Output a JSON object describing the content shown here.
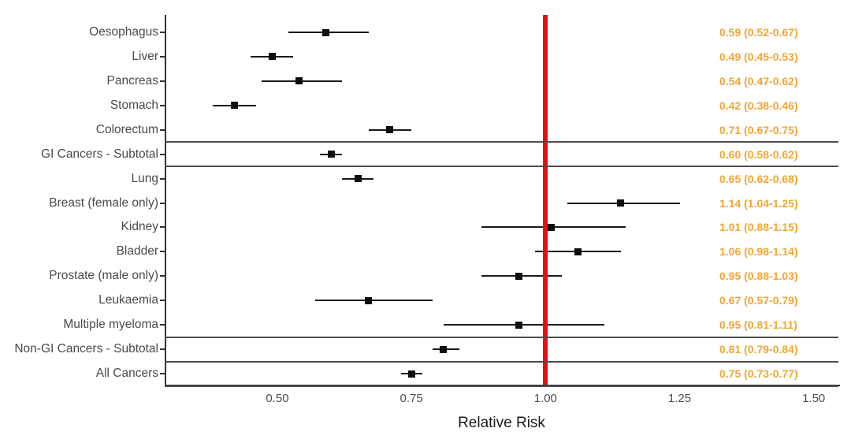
{
  "chart_data": {
    "type": "scatter",
    "variant": "forest-plot",
    "title": "",
    "xlabel": "Relative Risk",
    "ylabel": "",
    "xlim": [
      0.29,
      1.546
    ],
    "x_ticks": [
      0.5,
      0.75,
      1.0,
      1.25,
      1.5
    ],
    "x_tick_labels": [
      "0.50",
      "0.75",
      "1.00",
      "1.25",
      "1.50"
    ],
    "reference_line_x": 1.0,
    "grid": false,
    "legend": "none",
    "rows": [
      {
        "label": "Oesophagus",
        "rr": 0.59,
        "ci_low": 0.52,
        "ci_high": 0.67,
        "value_text": "0.59 (0.52-0.67)",
        "boxed": false
      },
      {
        "label": "Liver",
        "rr": 0.49,
        "ci_low": 0.45,
        "ci_high": 0.53,
        "value_text": "0.49 (0.45-0.53)",
        "boxed": false
      },
      {
        "label": "Pancreas",
        "rr": 0.54,
        "ci_low": 0.47,
        "ci_high": 0.62,
        "value_text": "0.54 (0.47-0.62)",
        "boxed": false
      },
      {
        "label": "Stomach",
        "rr": 0.42,
        "ci_low": 0.38,
        "ci_high": 0.46,
        "value_text": "0.42 (0.38-0.46)",
        "boxed": false
      },
      {
        "label": "Colorectum",
        "rr": 0.71,
        "ci_low": 0.67,
        "ci_high": 0.75,
        "value_text": "0.71 (0.67-0.75)",
        "boxed": false
      },
      {
        "label": "GI Cancers - Subtotal",
        "rr": 0.6,
        "ci_low": 0.58,
        "ci_high": 0.62,
        "value_text": "0.60 (0.58-0.62)",
        "boxed": true
      },
      {
        "label": "Lung",
        "rr": 0.65,
        "ci_low": 0.62,
        "ci_high": 0.68,
        "value_text": "0.65 (0.62-0.68)",
        "boxed": false
      },
      {
        "label": "Breast (female only)",
        "rr": 1.14,
        "ci_low": 1.04,
        "ci_high": 1.25,
        "value_text": "1.14 (1.04-1.25)",
        "boxed": false
      },
      {
        "label": "Kidney",
        "rr": 1.01,
        "ci_low": 0.88,
        "ci_high": 1.15,
        "value_text": "1.01 (0.88-1.15)",
        "boxed": false
      },
      {
        "label": "Bladder",
        "rr": 1.06,
        "ci_low": 0.98,
        "ci_high": 1.14,
        "value_text": "1.06 (0.98-1.14)",
        "boxed": false
      },
      {
        "label": "Prostate (male only)",
        "rr": 0.95,
        "ci_low": 0.88,
        "ci_high": 1.03,
        "value_text": "0.95 (0.88-1.03)",
        "boxed": false
      },
      {
        "label": "Leukaemia",
        "rr": 0.67,
        "ci_low": 0.57,
        "ci_high": 0.79,
        "value_text": "0.67 (0.57-0.79)",
        "boxed": false
      },
      {
        "label": "Multiple myeloma",
        "rr": 0.95,
        "ci_low": 0.81,
        "ci_high": 1.11,
        "value_text": "0.95 (0.81-1.11)",
        "boxed": false
      },
      {
        "label": "Non-GI Cancers - Subtotal",
        "rr": 0.81,
        "ci_low": 0.79,
        "ci_high": 0.84,
        "value_text": "0.81 (0.79-0.84)",
        "boxed": true
      },
      {
        "label": "All Cancers",
        "rr": 0.75,
        "ci_low": 0.73,
        "ci_high": 0.77,
        "value_text": "0.75 (0.73-0.77)",
        "boxed": true
      }
    ]
  },
  "colors": {
    "value_text": "#F0A732",
    "reference_line": "#E80C0C",
    "marker": "#0D0D0D",
    "error_bar": "#1A1A1A",
    "axis": "#333333",
    "separator": "#4D4D4D",
    "row_label_text": "#4A4A4A",
    "tick_label_text": "#4D4D4D",
    "axis_title_text": "#1A1A1A",
    "background": "#FFFFFF"
  }
}
